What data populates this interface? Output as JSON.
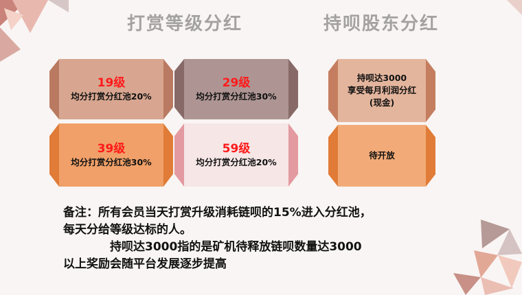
{
  "headings": {
    "dividend_by_level": "打赏等级分红",
    "holder_dividend": "持呗股东分红"
  },
  "level_tiles": [
    {
      "level": "19级",
      "desc": "均分打赏分红池20%"
    },
    {
      "level": "29级",
      "desc": "均分打赏分红池30%"
    },
    {
      "level": "39级",
      "desc": "均分打赏分红池30%"
    },
    {
      "level": "59级",
      "desc": "均分打赏分红池20%"
    }
  ],
  "holder_tiles": [
    {
      "lines": [
        "持呗达3000",
        "享受每月利润分红",
        "(现金)"
      ]
    },
    {
      "lines": [
        "待开放"
      ]
    }
  ],
  "notes": {
    "line1": "备注：所有会员当天打赏升级消耗链呗的15%进入分红池，",
    "line2": "每天分给等级达标的人。",
    "line3": "持呗达3000指的是矿机待释放链呗数量达3000",
    "line4": "以上奖励会随平台发展逐步提高"
  },
  "colors": {
    "tile_19": "#d8a690",
    "tile_29": "#ae9593",
    "tile_39": "#f0a068",
    "tile_59": "#f6e6e6",
    "holder_top": "#e4b59d",
    "holder_bottom": "#f2ab78",
    "level_text": "#ff1a1a"
  }
}
